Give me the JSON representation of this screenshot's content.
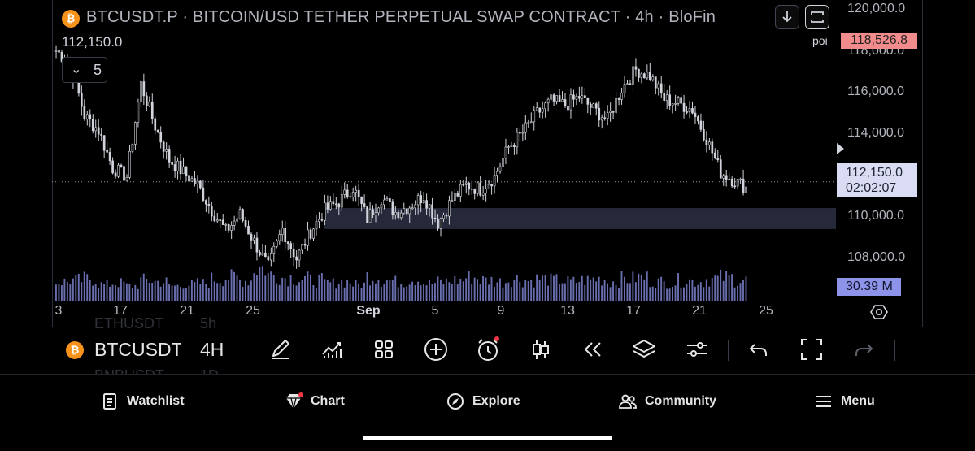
{
  "header": {
    "symbol_icon_letter": "₿",
    "title": "BTCUSDT.P · BITCOIN/USD TETHER PERPETUAL SWAP CONTRACT · 4h · BloFin",
    "last_price_label": "112,150.0",
    "indicators_collapsed_count": "5",
    "download_icon": "arrow-down-icon",
    "fullscreen_icon": "expand-icon"
  },
  "price_axis": {
    "labels": [
      "120,000.0",
      "118,000.0",
      "116,000.0",
      "114,000.0",
      "112,000.0",
      "110,000.0",
      "108,000.0"
    ],
    "poi_tag": "118,526.8",
    "last_price": "112,150.0",
    "countdown": "02:02:07",
    "volume_tag": "30.39 M"
  },
  "poi_line": {
    "label": "poi",
    "color": "#f28b8b"
  },
  "time_axis": {
    "labels": [
      "3",
      "17",
      "21",
      "25",
      "Sep",
      "5",
      "9",
      "13",
      "17",
      "21",
      "25"
    ]
  },
  "toolbar": {
    "symbol": "BTCUSDT.P",
    "interval": "4H",
    "icons": [
      "pencil-icon",
      "indicators-icon",
      "grid-icon",
      "plus-circle-icon",
      "alarm-icon",
      "candles-icon",
      "replay-icon",
      "layers-icon",
      "settings-sliders-icon",
      "undo-icon",
      "fullscreen-icon",
      "redo-icon"
    ],
    "ghost_rows": [
      {
        "symbol": "ETHUSDT",
        "interval": "5h"
      },
      {
        "symbol": "BNBUSDT",
        "interval": "1D"
      }
    ]
  },
  "bottom_nav": [
    {
      "label": "Watchlist",
      "icon": "watchlist-icon"
    },
    {
      "label": "Chart",
      "icon": "chart-icon"
    },
    {
      "label": "Explore",
      "icon": "compass-icon"
    },
    {
      "label": "Community",
      "icon": "community-icon"
    },
    {
      "label": "Menu",
      "icon": "hamburger-icon"
    }
  ],
  "colors": {
    "background": "#000000",
    "candle": "#d1d4dc",
    "volume": "#8c93e8",
    "poi": "#f28b8b",
    "zone": "#2a2e3f"
  },
  "chart_data": {
    "type": "candlestick",
    "timeframe": "4h",
    "x": [
      "3",
      "17",
      "21",
      "25",
      "Sep",
      "5",
      "9",
      "13",
      "17",
      "21",
      "25"
    ],
    "close_path": [
      118400,
      117800,
      115300,
      114600,
      112800,
      112400,
      116800,
      114800,
      113200,
      112600,
      112000,
      110800,
      109800,
      110600,
      109300,
      108100,
      109900,
      108500,
      109800,
      110800,
      111200,
      111900,
      110400,
      111400,
      110700,
      111000,
      111500,
      110200,
      111300,
      112000,
      111800,
      112400,
      113800,
      114500,
      115400,
      116000,
      115800,
      116200,
      115600,
      115100,
      116600,
      117500,
      117200,
      116100,
      115900,
      115600,
      114200,
      112600,
      112200,
      111800
    ],
    "volume_shape": [
      0.45,
      0.5,
      0.55,
      0.35,
      0.4,
      0.3,
      0.5,
      0.45,
      0.3,
      0.35,
      0.4,
      0.55,
      0.6,
      0.5,
      0.95,
      0.7,
      0.6,
      0.55,
      0.5,
      0.4,
      0.45,
      0.35,
      0.65,
      0.5,
      0.45,
      0.55,
      0.4,
      0.45,
      0.5,
      0.6,
      0.5,
      0.45,
      0.55,
      0.5,
      0.55,
      0.5,
      0.45,
      0.5,
      0.55,
      0.45,
      0.55,
      0.6,
      0.45,
      0.4,
      0.5,
      0.45,
      0.55,
      0.6,
      0.5,
      0.4
    ],
    "ylim": [
      106800,
      120500
    ],
    "poi_level": 118526.8,
    "last_price": 112150.0,
    "zone": {
      "low": 109900,
      "high": 110900,
      "from_index": 19,
      "to_end": true
    }
  }
}
